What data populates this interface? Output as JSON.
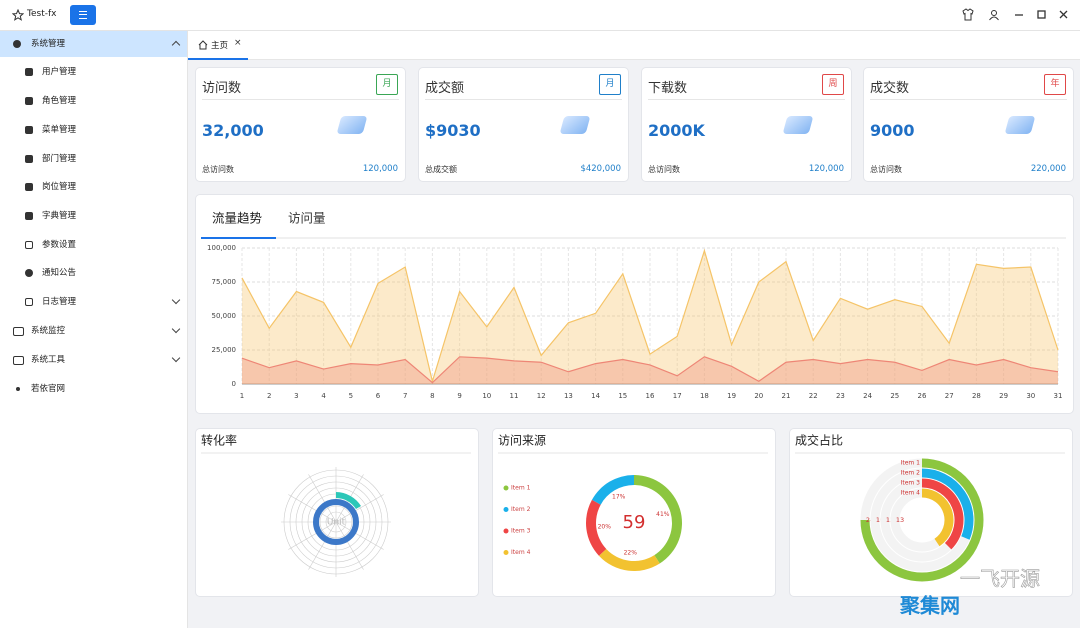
{
  "header": {
    "app_title": "Test-fx"
  },
  "menu": [
    {
      "label": "系统管理",
      "children": [
        "用户管理",
        "角色管理",
        "菜单管理",
        "部门管理",
        "岗位管理",
        "字典管理",
        "参数设置",
        "通知公告",
        "日志管理"
      ]
    },
    {
      "label": "系统监控"
    },
    {
      "label": "系统工具"
    },
    {
      "label": "若依官网"
    }
  ],
  "tabs": [
    "主页"
  ],
  "cards": [
    {
      "title": "访问数",
      "badge": "月",
      "badge_color": "#3aa655",
      "value": "32,000",
      "footer_label": "总访问数",
      "footer_value": "120,000"
    },
    {
      "title": "成交额",
      "badge": "月",
      "badge_color": "#1f7fc9",
      "value": "$9030",
      "footer_label": "总成交额",
      "footer_value": "$420,000"
    },
    {
      "title": "下载数",
      "badge": "周",
      "badge_color": "#e04848",
      "value": "2000K",
      "footer_label": "总访问数",
      "footer_value": "120,000"
    },
    {
      "title": "成交数",
      "badge": "年",
      "badge_color": "#e04848",
      "value": "9000",
      "footer_label": "总访问数",
      "footer_value": "220,000"
    }
  ],
  "traffic_chart": {
    "type": "area",
    "tabs": [
      "流量趋势",
      "访问量"
    ],
    "x": [
      1,
      2,
      3,
      4,
      5,
      6,
      7,
      8,
      9,
      10,
      11,
      12,
      13,
      14,
      15,
      16,
      17,
      18,
      19,
      20,
      21,
      22,
      23,
      24,
      25,
      26,
      27,
      28,
      29,
      30,
      31
    ],
    "xlim": [
      1,
      31
    ],
    "ylim": [
      0,
      100000
    ],
    "yticks": [
      0,
      {
        "value": 25000,
        "label": "25,000"
      },
      {
        "value": 50000,
        "label": "50,000"
      },
      {
        "value": 75000,
        "label": "75,000"
      },
      {
        "value": 100000,
        "label": "100,000"
      }
    ],
    "grid": true,
    "series": [
      {
        "color": "#f5c468",
        "values": [
          78000,
          41000,
          68000,
          60000,
          27000,
          74000,
          86000,
          2000,
          68000,
          42000,
          71000,
          21000,
          45000,
          52000,
          81000,
          22000,
          35000,
          98000,
          29000,
          75000,
          90000,
          32000,
          63000,
          55000,
          62000,
          57000,
          30000,
          88000,
          85000,
          86000,
          25000
        ]
      },
      {
        "color": "#ee8676",
        "values": [
          19000,
          12000,
          17000,
          11000,
          15000,
          14000,
          18000,
          1000,
          20000,
          19000,
          17000,
          16000,
          9000,
          15000,
          18000,
          14000,
          6000,
          20000,
          13000,
          2000,
          16000,
          18000,
          15000,
          18000,
          16000,
          10000,
          18000,
          14000,
          18000,
          12000,
          9000
        ]
      }
    ]
  },
  "conversion_chart": {
    "type": "polar",
    "title": "转化率",
    "center_label": "Unit"
  },
  "source_chart": {
    "type": "donut",
    "title": "访问来源",
    "center_value": 59,
    "categories": [
      "Item 1",
      "Item 2",
      "Item 3",
      "Item 4"
    ],
    "values": [
      41,
      17,
      20,
      22
    ],
    "value_labels": [
      "41%",
      "17%",
      "20%",
      "22%"
    ],
    "colors": [
      "#8cc63f",
      "#1ab0ea",
      "#ef4545",
      "#f2c230"
    ]
  },
  "deal_chart": {
    "type": "radial-bar",
    "title": "成交占比",
    "categories": [
      "Item 1",
      "Item 2",
      "Item 3",
      "Item 4"
    ],
    "values": [
      24,
      10,
      12,
      13
    ],
    "colors": [
      "#8cc63f",
      "#1ab0ea",
      "#ef4545",
      "#f2c230"
    ],
    "rlim": [
      0,
      32
    ]
  },
  "watermark": [
    "一飞开源",
    "聚集网"
  ]
}
